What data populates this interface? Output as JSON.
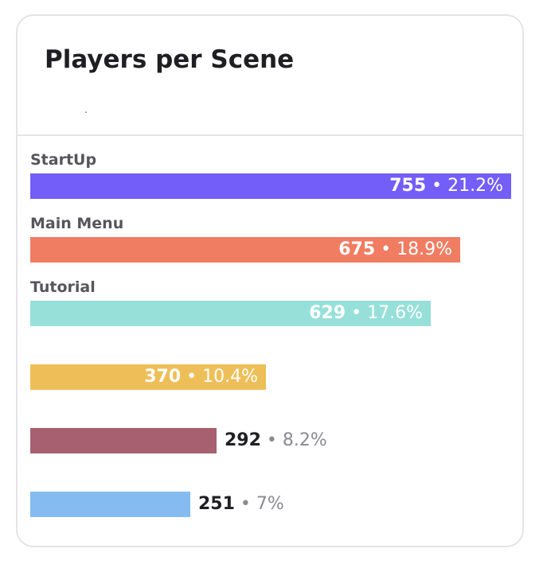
{
  "card": {
    "title": "Players per Scene",
    "subtitle": "."
  },
  "chart_data": {
    "type": "bar",
    "orientation": "horizontal",
    "title": "Players per Scene",
    "categories": [
      "StartUp",
      "Main Menu",
      "Tutorial",
      "",
      "",
      ""
    ],
    "values": [
      755,
      675,
      629,
      370,
      292,
      251
    ],
    "percent_labels": [
      "21.2%",
      "18.9%",
      "17.6%",
      "10.4%",
      "8.2%",
      "7%"
    ],
    "colors": [
      "#735ef7",
      "#f07c62",
      "#97e0d9",
      "#eebf58",
      "#a6606f",
      "#84bbf0"
    ],
    "label_position": [
      "inside",
      "inside",
      "inside",
      "inside",
      "outside",
      "outside"
    ],
    "separator": "•",
    "xlim": [
      0,
      755
    ],
    "grid": false,
    "legend": "none"
  }
}
